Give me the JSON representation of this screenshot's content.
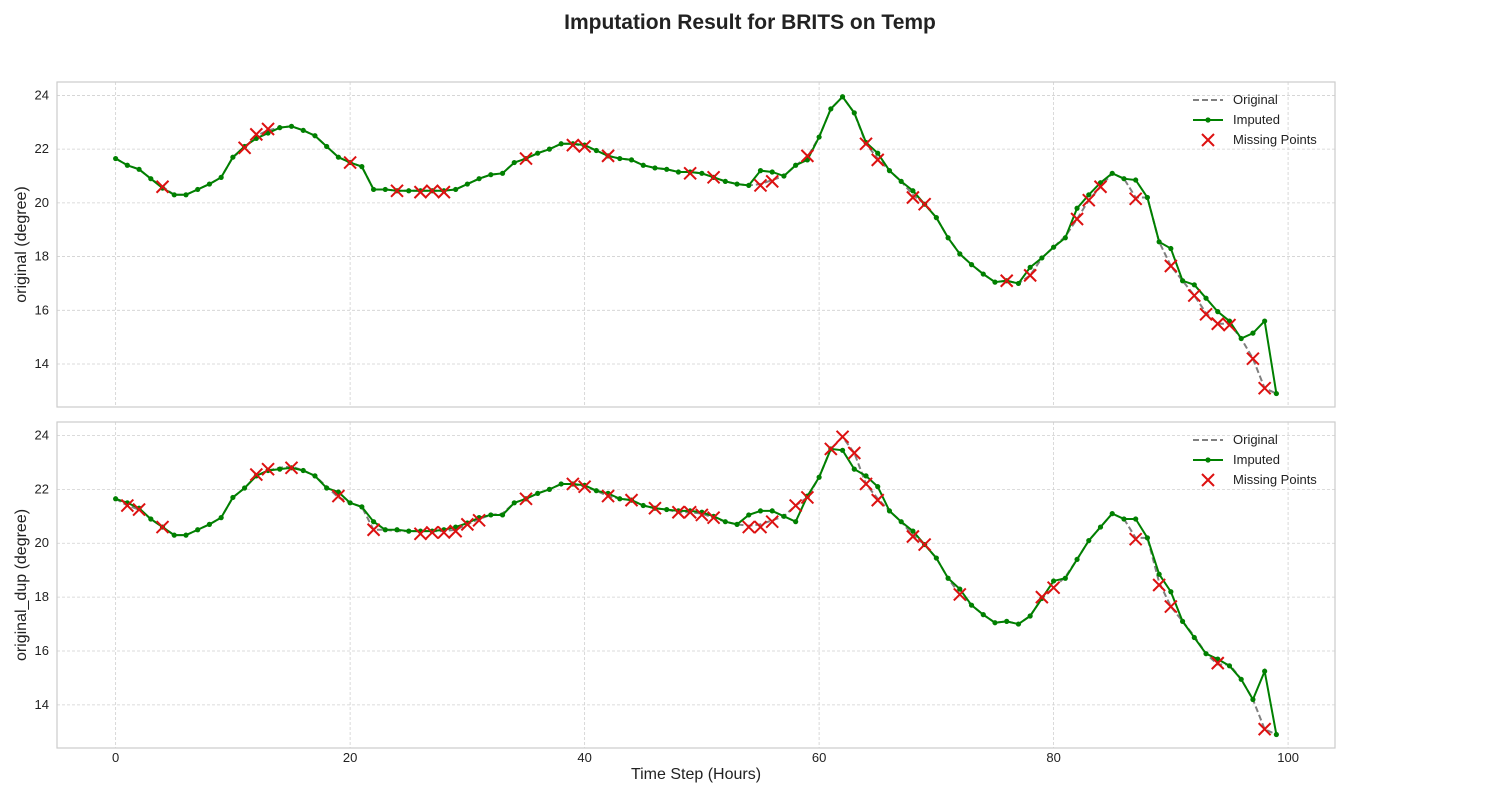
{
  "title": "Imputation Result for BRITS on Temp",
  "xlabel": "Time Step (Hours)",
  "legend_labels": [
    "Original",
    "Imputed",
    "Missing Points"
  ],
  "colors": {
    "original": "#808080",
    "imputed": "#008000",
    "missing": "#dd1111",
    "grid": "#d0d0d0",
    "frame": "#cccccc",
    "text": "#222222"
  },
  "chart_data": [
    {
      "type": "line",
      "ylabel": "original (degree)",
      "xlim": [
        -5,
        104
      ],
      "ylim": [
        12.4,
        24.5
      ],
      "xticks": [
        0,
        20,
        40,
        60,
        80,
        100
      ],
      "yticks": [
        14,
        16,
        18,
        20,
        22,
        24
      ],
      "grid": true,
      "legend": "top-right",
      "series": [
        {
          "name": "Original",
          "style": "dashed",
          "x": [
            0,
            1,
            2,
            3,
            4,
            5,
            6,
            7,
            8,
            9,
            10,
            11,
            12,
            13,
            14,
            15,
            16,
            17,
            18,
            19,
            20,
            21,
            22,
            23,
            24,
            25,
            26,
            27,
            28,
            29,
            30,
            31,
            32,
            33,
            34,
            35,
            36,
            37,
            38,
            39,
            40,
            41,
            42,
            43,
            44,
            45,
            46,
            47,
            48,
            49,
            50,
            51,
            52,
            53,
            54,
            55,
            56,
            57,
            58,
            59,
            60,
            61,
            62,
            63,
            64,
            65,
            66,
            67,
            68,
            69,
            70,
            71,
            72,
            73,
            74,
            75,
            76,
            77,
            78,
            79,
            80,
            81,
            82,
            83,
            84,
            85,
            86,
            87,
            88,
            89,
            90,
            91,
            92,
            93,
            94,
            95,
            96,
            97,
            98,
            99
          ],
          "values": [
            21.65,
            21.4,
            21.25,
            20.9,
            20.6,
            20.3,
            20.3,
            20.5,
            20.7,
            20.95,
            21.7,
            22.05,
            22.5,
            22.7,
            22.8,
            22.85,
            22.7,
            22.5,
            22.1,
            21.7,
            21.5,
            21.35,
            20.5,
            20.5,
            20.45,
            20.45,
            20.45,
            20.45,
            20.45,
            20.5,
            20.7,
            20.9,
            21.05,
            21.1,
            21.5,
            21.65,
            21.85,
            22.0,
            22.2,
            22.2,
            22.1,
            21.95,
            21.75,
            21.65,
            21.6,
            21.4,
            21.3,
            21.25,
            21.15,
            21.15,
            21.1,
            20.95,
            20.8,
            20.7,
            20.65,
            20.7,
            20.85,
            21.0,
            21.4,
            21.7,
            22.45,
            23.5,
            23.95,
            23.35,
            22.2,
            21.65,
            21.2,
            20.8,
            20.3,
            19.95,
            19.45,
            18.7,
            18.1,
            17.7,
            17.35,
            17.05,
            17.1,
            17.0,
            17.3,
            17.95,
            18.35,
            18.75,
            19.4,
            20.1,
            20.6,
            21.1,
            20.9,
            20.2,
            20.2,
            18.55,
            17.65,
            17.1,
            16.55,
            15.9,
            15.5,
            15.5,
            14.95,
            14.2,
            13.1,
            12.9
          ]
        },
        {
          "name": "Imputed",
          "style": "solid-dot",
          "x": [
            0,
            1,
            2,
            3,
            4,
            5,
            6,
            7,
            8,
            9,
            10,
            11,
            12,
            13,
            14,
            15,
            16,
            17,
            18,
            19,
            20,
            21,
            22,
            23,
            24,
            25,
            26,
            27,
            28,
            29,
            30,
            31,
            32,
            33,
            34,
            35,
            36,
            37,
            38,
            39,
            40,
            41,
            42,
            43,
            44,
            45,
            46,
            47,
            48,
            49,
            50,
            51,
            52,
            53,
            54,
            55,
            56,
            57,
            58,
            59,
            60,
            61,
            62,
            63,
            64,
            65,
            66,
            67,
            68,
            69,
            70,
            71,
            72,
            73,
            74,
            75,
            76,
            77,
            78,
            79,
            80,
            81,
            82,
            83,
            84,
            85,
            86,
            87,
            88,
            89,
            90,
            91,
            92,
            93,
            94,
            95,
            96,
            97,
            98,
            99
          ],
          "values": [
            21.65,
            21.4,
            21.25,
            20.9,
            20.55,
            20.3,
            20.3,
            20.5,
            20.7,
            20.95,
            21.7,
            22.1,
            22.4,
            22.6,
            22.8,
            22.85,
            22.7,
            22.5,
            22.1,
            21.7,
            21.5,
            21.35,
            20.5,
            20.5,
            20.45,
            20.45,
            20.45,
            20.45,
            20.45,
            20.5,
            20.7,
            20.9,
            21.05,
            21.1,
            21.5,
            21.65,
            21.85,
            22.0,
            22.2,
            22.2,
            22.15,
            21.95,
            21.75,
            21.65,
            21.6,
            21.4,
            21.3,
            21.25,
            21.15,
            21.15,
            21.1,
            20.95,
            20.8,
            20.7,
            20.65,
            21.2,
            21.15,
            21.0,
            21.4,
            21.6,
            22.45,
            23.5,
            23.95,
            23.35,
            22.25,
            21.85,
            21.2,
            20.8,
            20.45,
            19.95,
            19.45,
            18.7,
            18.1,
            17.7,
            17.35,
            17.05,
            17.1,
            17.0,
            17.6,
            17.95,
            18.35,
            18.7,
            19.8,
            20.3,
            20.75,
            21.1,
            20.9,
            20.85,
            20.2,
            18.55,
            18.3,
            17.1,
            16.95,
            16.45,
            15.95,
            15.6,
            14.95,
            15.15,
            15.6,
            12.9
          ]
        },
        {
          "name": "Missing Points",
          "style": "x-marker",
          "x": [
            4,
            11,
            12,
            13,
            20,
            24,
            26,
            27,
            28,
            35,
            39,
            40,
            42,
            49,
            51,
            55,
            56,
            59,
            64,
            65,
            68,
            69,
            76,
            78,
            82,
            83,
            84,
            87,
            90,
            92,
            93,
            94,
            95,
            97,
            98
          ],
          "values": [
            20.6,
            22.05,
            22.55,
            22.75,
            21.5,
            20.45,
            20.4,
            20.45,
            20.4,
            21.65,
            22.15,
            22.1,
            21.75,
            21.1,
            20.95,
            20.65,
            20.8,
            21.75,
            22.2,
            21.6,
            20.2,
            19.95,
            17.1,
            17.3,
            19.4,
            20.1,
            20.6,
            20.15,
            17.65,
            16.55,
            15.85,
            15.5,
            15.45,
            14.2,
            13.1
          ]
        }
      ]
    },
    {
      "type": "line",
      "ylabel": "original_dup (degree)",
      "xlim": [
        -5,
        104
      ],
      "ylim": [
        12.4,
        24.5
      ],
      "xticks": [
        0,
        20,
        40,
        60,
        80,
        100
      ],
      "yticks": [
        14,
        16,
        18,
        20,
        22,
        24
      ],
      "grid": true,
      "legend": "top-right",
      "series": [
        {
          "name": "Original",
          "style": "dashed",
          "x": [
            0,
            1,
            2,
            3,
            4,
            5,
            6,
            7,
            8,
            9,
            10,
            11,
            12,
            13,
            14,
            15,
            16,
            17,
            18,
            19,
            20,
            21,
            22,
            23,
            24,
            25,
            26,
            27,
            28,
            29,
            30,
            31,
            32,
            33,
            34,
            35,
            36,
            37,
            38,
            39,
            40,
            41,
            42,
            43,
            44,
            45,
            46,
            47,
            48,
            49,
            50,
            51,
            52,
            53,
            54,
            55,
            56,
            57,
            58,
            59,
            60,
            61,
            62,
            63,
            64,
            65,
            66,
            67,
            68,
            69,
            70,
            71,
            72,
            73,
            74,
            75,
            76,
            77,
            78,
            79,
            80,
            81,
            82,
            83,
            84,
            85,
            86,
            87,
            88,
            89,
            90,
            91,
            92,
            93,
            94,
            95,
            96,
            97,
            98,
            99
          ],
          "values": [
            21.65,
            21.4,
            21.25,
            20.9,
            20.6,
            20.3,
            20.3,
            20.5,
            20.7,
            20.95,
            21.7,
            22.05,
            22.5,
            22.7,
            22.8,
            22.85,
            22.7,
            22.5,
            22.1,
            21.7,
            21.5,
            21.35,
            20.5,
            20.5,
            20.45,
            20.45,
            20.45,
            20.45,
            20.45,
            20.5,
            20.7,
            20.9,
            21.05,
            21.1,
            21.5,
            21.65,
            21.85,
            22.0,
            22.2,
            22.2,
            22.1,
            21.95,
            21.75,
            21.65,
            21.6,
            21.4,
            21.3,
            21.25,
            21.15,
            21.15,
            21.1,
            20.95,
            20.8,
            20.7,
            20.65,
            20.7,
            20.85,
            21.0,
            21.4,
            21.7,
            22.45,
            23.5,
            23.95,
            23.35,
            22.2,
            21.65,
            21.2,
            20.8,
            20.3,
            19.95,
            19.45,
            18.7,
            18.1,
            17.7,
            17.35,
            17.05,
            17.1,
            17.0,
            17.3,
            17.95,
            18.35,
            18.75,
            19.4,
            20.1,
            20.6,
            21.1,
            20.9,
            20.2,
            20.2,
            18.55,
            17.65,
            17.1,
            16.55,
            15.9,
            15.5,
            15.5,
            14.95,
            14.2,
            13.1,
            12.9
          ]
        },
        {
          "name": "Imputed",
          "style": "solid-dot",
          "x": [
            0,
            1,
            2,
            3,
            4,
            5,
            6,
            7,
            8,
            9,
            10,
            11,
            12,
            13,
            14,
            15,
            16,
            17,
            18,
            19,
            20,
            21,
            22,
            23,
            24,
            25,
            26,
            27,
            28,
            29,
            30,
            31,
            32,
            33,
            34,
            35,
            36,
            37,
            38,
            39,
            40,
            41,
            42,
            43,
            44,
            45,
            46,
            47,
            48,
            49,
            50,
            51,
            52,
            53,
            54,
            55,
            56,
            57,
            58,
            59,
            60,
            61,
            62,
            63,
            64,
            65,
            66,
            67,
            68,
            69,
            70,
            71,
            72,
            73,
            74,
            75,
            76,
            77,
            78,
            79,
            80,
            81,
            82,
            83,
            84,
            85,
            86,
            87,
            88,
            89,
            90,
            91,
            92,
            93,
            94,
            95,
            96,
            97,
            98,
            99
          ],
          "values": [
            21.65,
            21.5,
            21.3,
            20.9,
            20.6,
            20.3,
            20.3,
            20.5,
            20.7,
            20.95,
            21.7,
            22.05,
            22.5,
            22.7,
            22.75,
            22.8,
            22.7,
            22.5,
            22.05,
            21.9,
            21.5,
            21.35,
            20.8,
            20.5,
            20.5,
            20.45,
            20.45,
            20.45,
            20.5,
            20.6,
            20.75,
            20.95,
            21.05,
            21.05,
            21.5,
            21.65,
            21.85,
            22.0,
            22.2,
            22.2,
            22.15,
            21.95,
            21.85,
            21.65,
            21.6,
            21.4,
            21.3,
            21.25,
            21.2,
            21.2,
            21.15,
            21.0,
            20.8,
            20.7,
            21.05,
            21.2,
            21.2,
            21.0,
            20.8,
            21.75,
            22.45,
            23.5,
            23.45,
            22.75,
            22.5,
            22.1,
            21.2,
            20.8,
            20.45,
            19.95,
            19.45,
            18.7,
            18.3,
            17.7,
            17.35,
            17.05,
            17.1,
            17.0,
            17.3,
            17.95,
            18.6,
            18.7,
            19.4,
            20.1,
            20.6,
            21.1,
            20.9,
            20.9,
            20.2,
            18.85,
            18.2,
            17.1,
            16.5,
            15.9,
            15.7,
            15.45,
            14.95,
            14.2,
            15.25,
            12.9
          ]
        },
        {
          "name": "Missing Points",
          "style": "x-marker",
          "x": [
            1,
            2,
            4,
            12,
            13,
            15,
            19,
            22,
            26,
            27,
            28,
            29,
            30,
            31,
            35,
            39,
            40,
            42,
            44,
            46,
            48,
            49,
            50,
            51,
            54,
            55,
            56,
            58,
            59,
            61,
            62,
            63,
            64,
            65,
            68,
            69,
            72,
            79,
            80,
            87,
            89,
            90,
            94,
            98
          ],
          "values": [
            21.4,
            21.25,
            20.6,
            22.55,
            22.75,
            22.8,
            21.75,
            20.5,
            20.35,
            20.4,
            20.4,
            20.45,
            20.7,
            20.85,
            21.65,
            22.2,
            22.1,
            21.75,
            21.6,
            21.3,
            21.15,
            21.15,
            21.05,
            20.95,
            20.6,
            20.6,
            20.8,
            21.4,
            21.7,
            23.5,
            23.95,
            23.35,
            22.2,
            21.6,
            20.25,
            19.95,
            18.1,
            18.0,
            18.35,
            20.15,
            18.45,
            17.65,
            15.55,
            13.1
          ]
        }
      ]
    }
  ]
}
